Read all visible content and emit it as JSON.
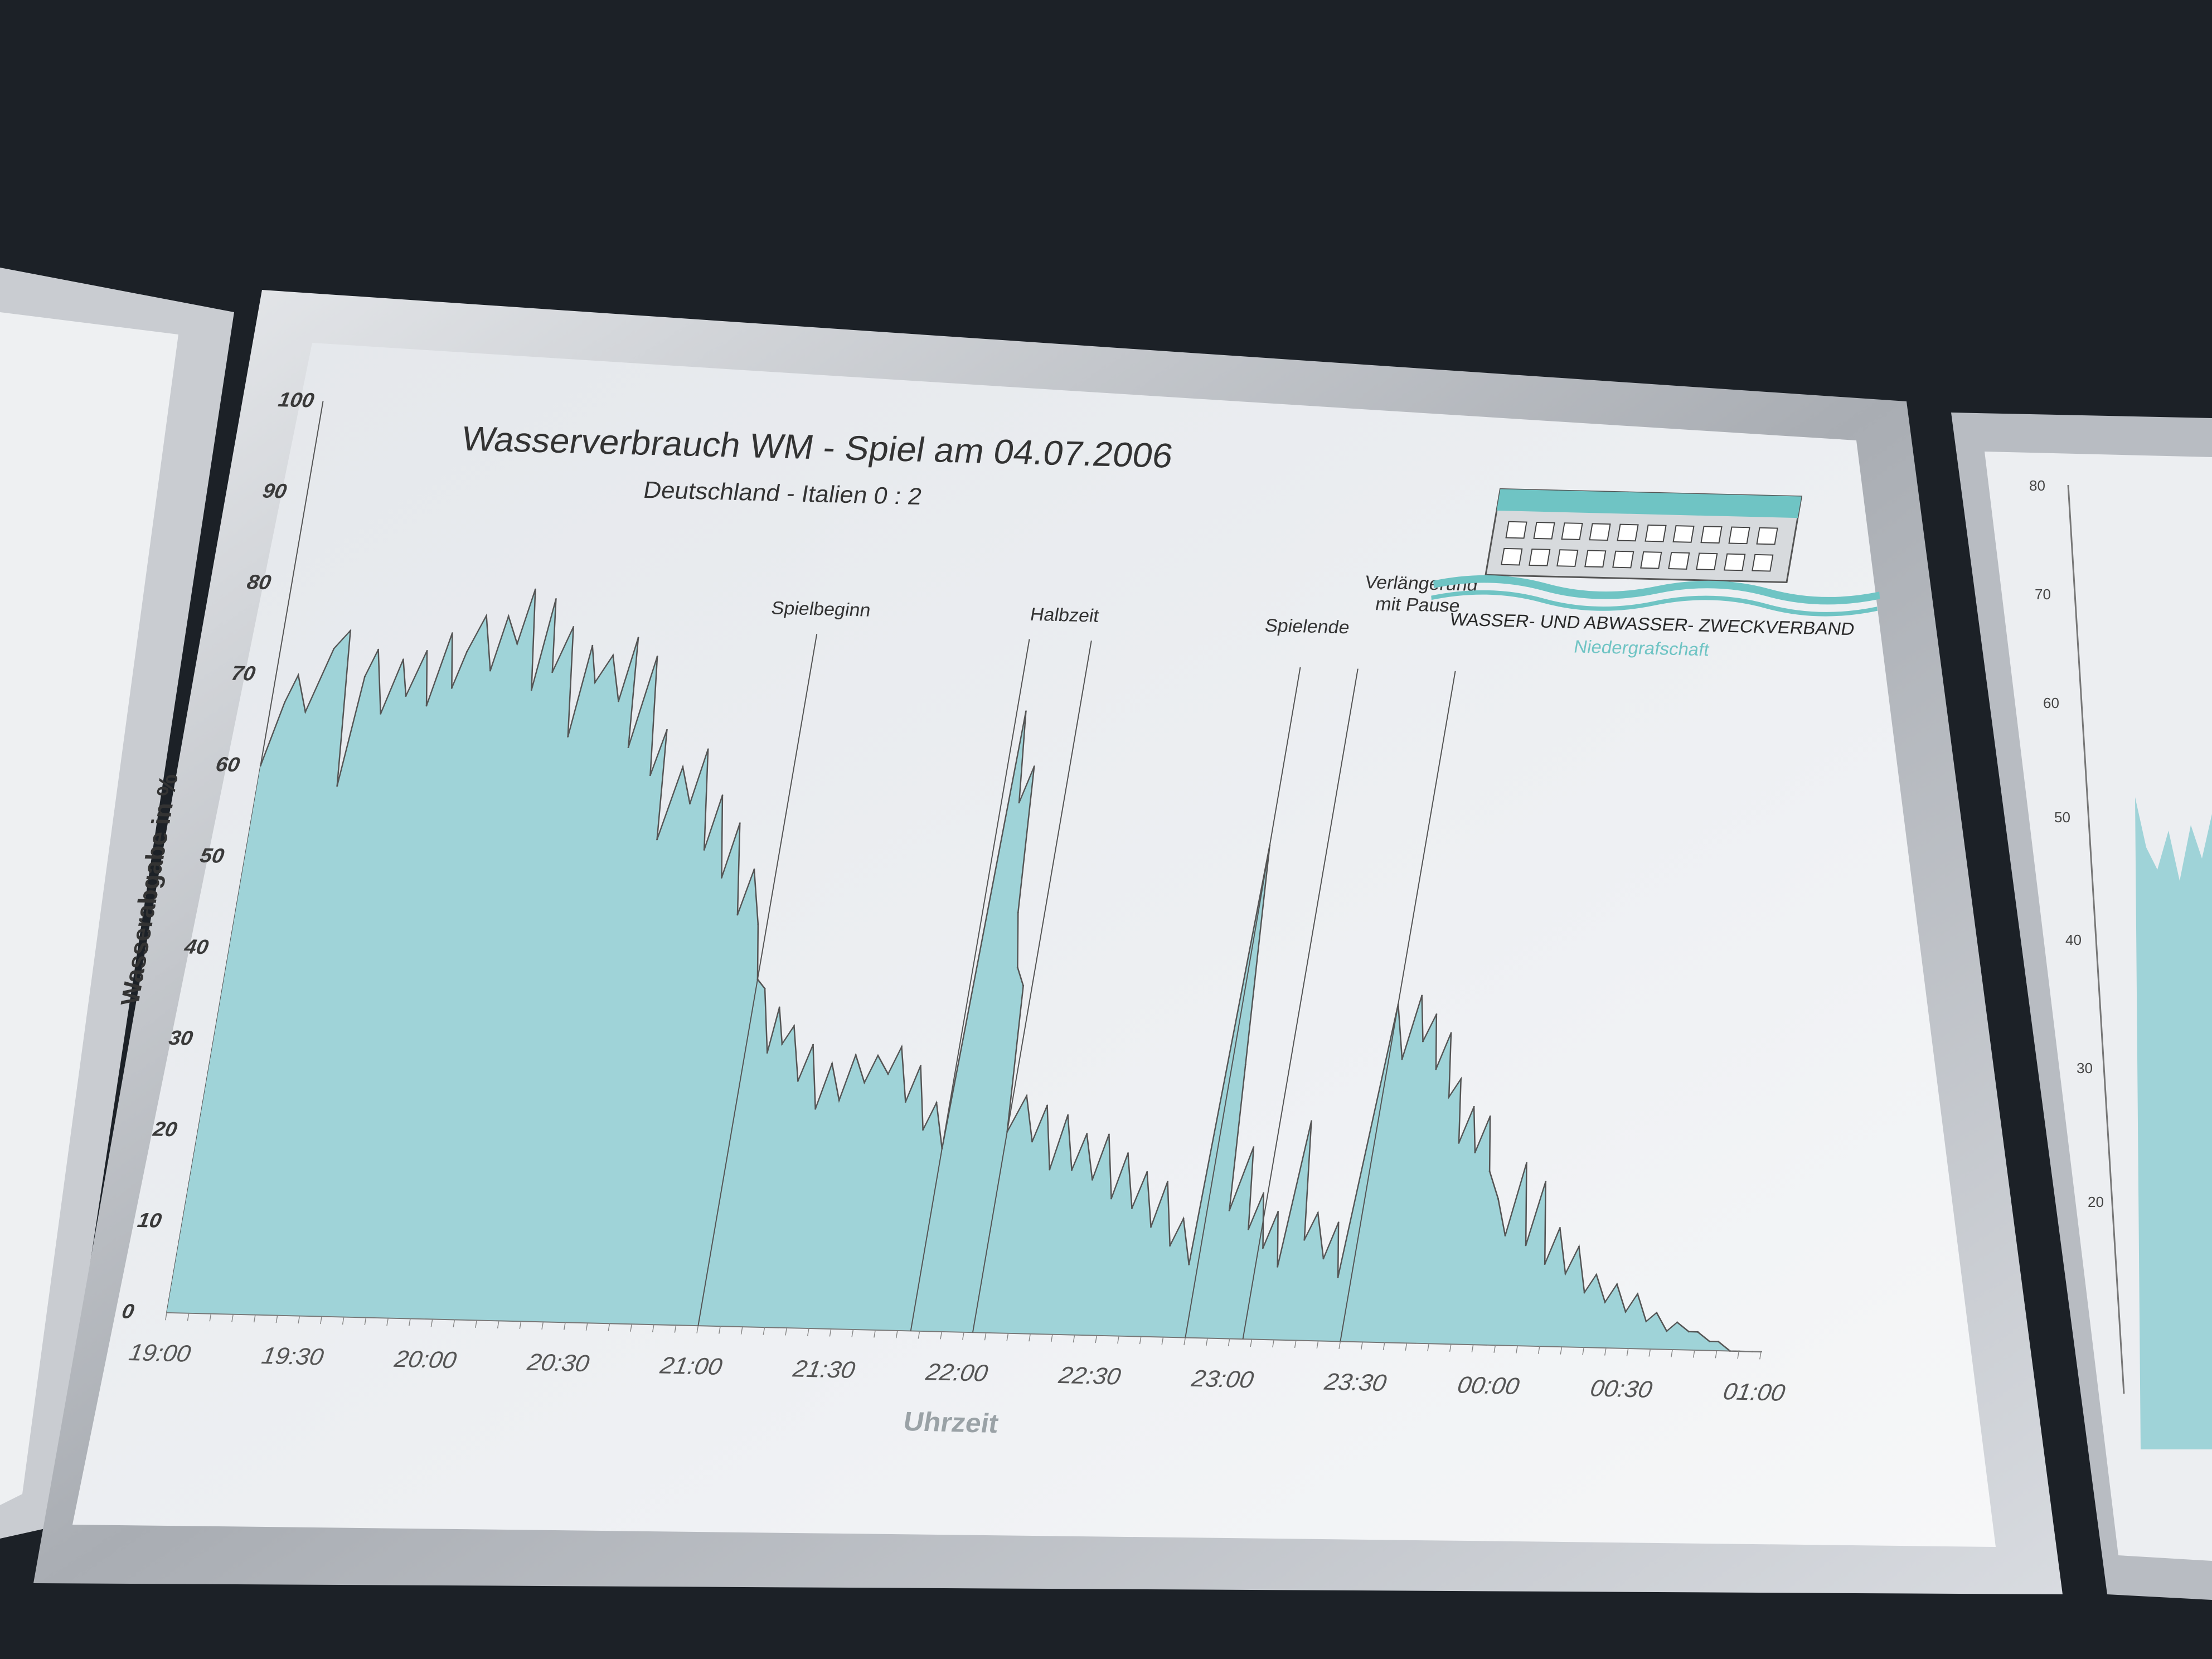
{
  "chart_data": {
    "type": "area",
    "title": "Wasserverbrauch WM - Spiel am 04.07.2006",
    "subtitle": "Deutschland - Italien  0 : 2",
    "ylabel": "Wasserabgabe  in %",
    "xlabel": "Uhrzeit",
    "ylim": [
      0,
      100
    ],
    "yticks": [
      "0",
      "10",
      "20",
      "30",
      "40",
      "50",
      "60",
      "70",
      "80",
      "90",
      "100"
    ],
    "xticks": [
      "19:00",
      "19:30",
      "20:00",
      "20:30",
      "21:00",
      "21:30",
      "22:00",
      "22:30",
      "23:00",
      "23:30",
      "00:00",
      "00:30",
      "01:00"
    ],
    "fill_color": "#9fd3d8",
    "line_color": "#555555",
    "grid": false,
    "x_minutes_after_19_00": [
      0,
      3,
      5,
      8,
      12,
      15,
      18,
      20,
      22,
      25,
      28,
      30,
      33,
      35,
      38,
      40,
      42,
      45,
      48,
      50,
      53,
      55,
      58,
      60,
      62,
      65,
      68,
      70,
      72,
      75,
      78,
      80,
      82,
      85,
      88,
      90,
      92,
      95,
      98,
      100,
      103,
      105,
      108,
      110,
      113,
      115,
      118,
      120,
      122,
      125,
      126,
      128,
      130,
      133,
      135,
      138,
      140,
      143,
      145,
      148,
      150,
      153,
      155,
      158,
      160,
      163,
      165,
      168,
      170,
      172,
      174,
      176,
      178,
      180,
      182,
      185,
      188,
      190,
      193,
      195,
      198,
      200,
      203,
      205,
      208,
      210,
      213,
      215,
      218,
      220,
      223,
      225,
      228,
      230,
      233,
      235,
      238,
      240,
      242,
      244,
      246,
      248,
      250,
      253,
      255,
      258,
      260,
      262,
      265,
      268,
      270,
      272,
      274,
      276,
      278,
      280,
      282,
      284,
      286,
      288,
      290,
      292,
      295,
      298,
      300,
      303,
      305,
      308,
      310,
      313,
      315,
      318,
      320,
      323,
      325,
      328,
      330,
      333,
      335,
      338,
      340,
      343,
      345,
      348,
      350,
      353,
      355,
      358,
      360
    ],
    "values": [
      60,
      67,
      70,
      66,
      73,
      75,
      58,
      70,
      73,
      66,
      72,
      68,
      73,
      67,
      75,
      69,
      73,
      77,
      71,
      77,
      74,
      80,
      69,
      79,
      71,
      76,
      64,
      74,
      70,
      73,
      68,
      75,
      63,
      73,
      60,
      65,
      53,
      61,
      57,
      63,
      52,
      58,
      49,
      55,
      45,
      50,
      44,
      38,
      37,
      30,
      35,
      31,
      33,
      27,
      31,
      24,
      29,
      25,
      30,
      27,
      30,
      28,
      31,
      25,
      29,
      22,
      25,
      20,
      68,
      58,
      62,
      46,
      40,
      38,
      22,
      26,
      21,
      25,
      18,
      24,
      18,
      22,
      17,
      22,
      15,
      20,
      14,
      18,
      12,
      17,
      10,
      13,
      8,
      54,
      30,
      14,
      21,
      12,
      16,
      10,
      14,
      8,
      24,
      11,
      14,
      9,
      13,
      7,
      37,
      31,
      38,
      33,
      36,
      30,
      34,
      27,
      29,
      22,
      26,
      21,
      25,
      19,
      16,
      12,
      20,
      11,
      18,
      9,
      13,
      8,
      11,
      6,
      8,
      5,
      7,
      4,
      6,
      3,
      4,
      2,
      3,
      2,
      2,
      1,
      1,
      0,
      0,
      0,
      0
    ],
    "event_markers": [
      {
        "label": "Spielbeginn",
        "time": "21:00"
      },
      {
        "label": "Halbzeit",
        "time": "21:48"
      },
      {
        "label": "Halbzeit",
        "time": "22:02"
      },
      {
        "label": "Spielende",
        "time": "22:50"
      },
      {
        "label": "Verlängerung mit Pause",
        "time": "23:03"
      },
      {
        "label": "Verlängerung mit Pause",
        "time": "23:25"
      }
    ]
  },
  "logo": {
    "name_line1": "WASSER- UND ABWASSER- ZWECKVERBAND",
    "name_line2": "Niedergrafschaft",
    "color": "#6fc4c4",
    "icon": "building-logo-icon"
  },
  "right_panel": {
    "yticks": [
      "20",
      "30",
      "40",
      "50",
      "60",
      "70",
      "80"
    ]
  }
}
